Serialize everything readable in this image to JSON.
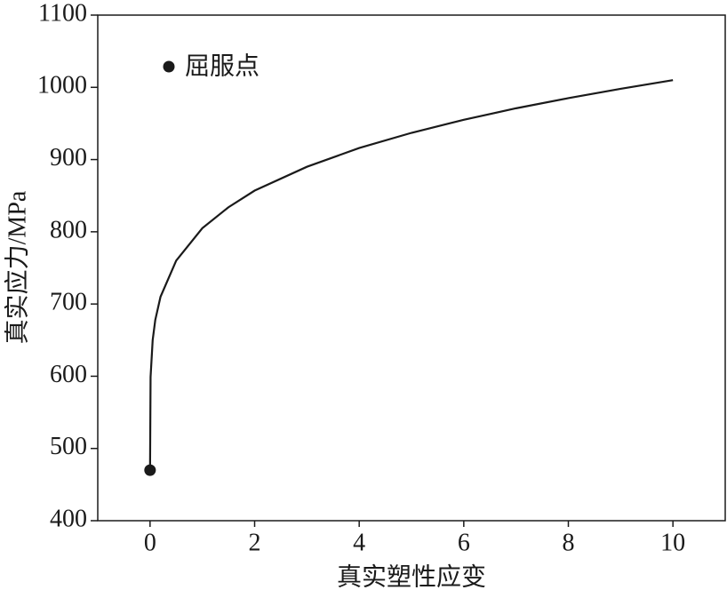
{
  "chart_data": {
    "type": "line",
    "x_label": "真实塑性应变",
    "y_label": "真实应力/MPa",
    "xlim": [
      -1,
      11
    ],
    "xticks": [
      0,
      2,
      4,
      6,
      8,
      10
    ],
    "ylim": [
      400,
      1100
    ],
    "yticks": [
      400,
      500,
      600,
      700,
      800,
      900,
      1000,
      1100
    ],
    "legend": "upper left",
    "series": [
      {
        "type": "line",
        "color": "#1a1a1a",
        "x": [
          0,
          0.01,
          0.05,
          0.1,
          0.2,
          0.5,
          1,
          1.5,
          2,
          3,
          4,
          5,
          6,
          7,
          8,
          9,
          10
        ],
        "values": [
          470,
          599,
          650,
          678,
          710,
          760,
          805,
          834,
          857,
          890,
          916,
          937,
          955,
          971,
          985,
          998,
          1010
        ]
      },
      {
        "type": "scatter",
        "name": "屈服点",
        "color": "#1a1a1a",
        "x": [
          0
        ],
        "values": [
          470
        ]
      }
    ]
  }
}
